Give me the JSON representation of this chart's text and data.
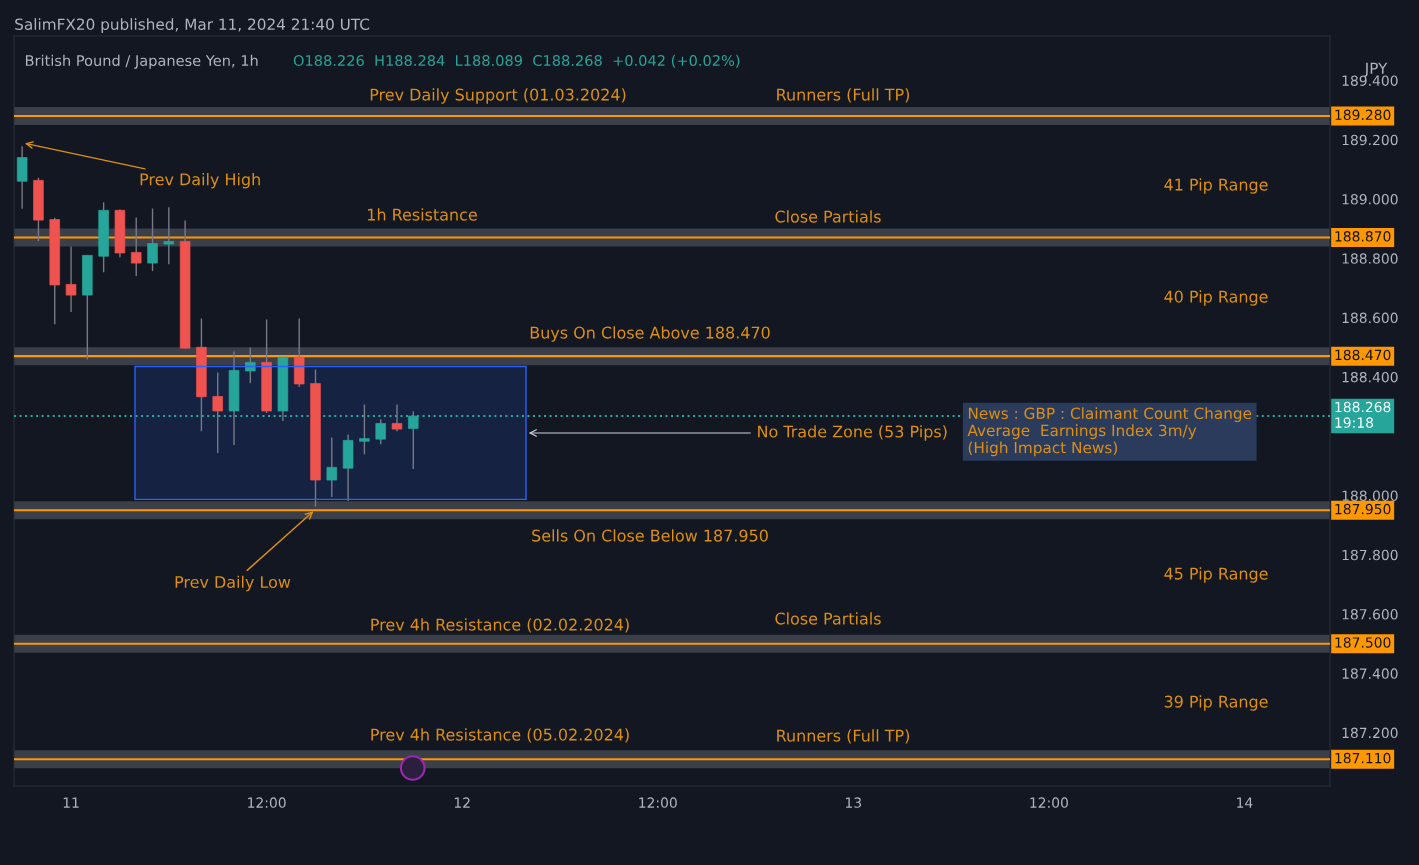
{
  "chart_data": {
    "type": "candlestick",
    "title": "British Pound / Japanese Yen, 1h",
    "subtitle": "O188.226  H188.284  L188.089  C188.268  +0.042 (+0.02%)",
    "ylabel": "JPY",
    "x": [
      "2024-03-10T21:00",
      "2024-03-10T22:00",
      "2024-03-10T23:00",
      "2024-03-11T00:00",
      "2024-03-11T01:00",
      "2024-03-11T02:00",
      "2024-03-11T03:00",
      "2024-03-11T04:00",
      "2024-03-11T05:00",
      "2024-03-11T06:00",
      "2024-03-11T07:00",
      "2024-03-11T08:00",
      "2024-03-11T09:00",
      "2024-03-11T10:00",
      "2024-03-11T11:00",
      "2024-03-11T12:00",
      "2024-03-11T13:00",
      "2024-03-11T14:00",
      "2024-03-11T15:00",
      "2024-03-11T16:00",
      "2024-03-11T17:00",
      "2024-03-11T18:00",
      "2024-03-11T19:00",
      "2024-03-11T20:00",
      "2024-03-11T21:00"
    ],
    "ohlc": [
      [
        189.06,
        189.178,
        188.967,
        189.14
      ],
      [
        189.063,
        189.072,
        188.858,
        188.929
      ],
      [
        188.931,
        188.937,
        188.578,
        188.71
      ],
      [
        188.712,
        188.84,
        188.619,
        188.676
      ],
      [
        188.676,
        188.81,
        188.459,
        188.81
      ],
      [
        188.807,
        188.989,
        188.753,
        188.962
      ],
      [
        188.962,
        188.965,
        188.804,
        188.818
      ],
      [
        188.82,
        188.938,
        188.74,
        188.784
      ],
      [
        188.784,
        188.968,
        188.757,
        188.85
      ],
      [
        188.848,
        188.972,
        188.78,
        188.857
      ],
      [
        188.857,
        188.928,
        188.495,
        188.497
      ],
      [
        188.5,
        188.597,
        188.217,
        188.333
      ],
      [
        188.334,
        188.415,
        188.143,
        188.285
      ],
      [
        188.285,
        188.486,
        188.17,
        188.422
      ],
      [
        188.42,
        188.499,
        188.379,
        188.449
      ],
      [
        188.449,
        188.594,
        188.278,
        188.285
      ],
      [
        188.285,
        188.467,
        188.251,
        188.467
      ],
      [
        188.467,
        188.597,
        188.366,
        188.376
      ],
      [
        188.378,
        188.425,
        187.962,
        188.052
      ],
      [
        188.052,
        188.196,
        187.995,
        188.095
      ],
      [
        188.092,
        188.206,
        187.981,
        188.186
      ],
      [
        188.183,
        188.307,
        188.139,
        188.192
      ],
      [
        188.19,
        188.257,
        188.173,
        188.243
      ],
      [
        188.243,
        188.307,
        188.217,
        188.224
      ],
      [
        188.226,
        188.284,
        188.089,
        188.268
      ]
    ],
    "colors": [
      "#26a69a",
      "#ef5350",
      "#ef5350",
      "#ef5350",
      "#26a69a",
      "#26a69a",
      "#ef5350",
      "#ef5350",
      "#26a69a",
      "#26a69a",
      "#ef5350",
      "#ef5350",
      "#ef5350",
      "#26a69a",
      "#26a69a",
      "#ef5350",
      "#26a69a",
      "#ef5350",
      "#ef5350",
      "#26a69a",
      "#26a69a",
      "#26a69a",
      "#26a69a",
      "#ef5350",
      "#26a69a"
    ],
    "xlim": [
      "2024-03-10T20:30",
      "2024-03-14T05:15"
    ],
    "xticks": [
      {
        "value": "2024-03-11T00:00",
        "label": "11"
      },
      {
        "value": "2024-03-11T12:00",
        "label": "12:00"
      },
      {
        "value": "2024-03-12T00:00",
        "label": "12"
      },
      {
        "value": "2024-03-12T12:00",
        "label": "12:00"
      },
      {
        "value": "2024-03-13T00:00",
        "label": "13"
      },
      {
        "value": "2024-03-13T12:00",
        "label": "12:00"
      },
      {
        "value": "2024-03-14T00:00",
        "label": "14"
      }
    ],
    "ylim": [
      187.02,
      189.55
    ],
    "yticks": [
      {
        "value": 187.2,
        "label": "187.200"
      },
      {
        "value": 187.4,
        "label": "187.400"
      },
      {
        "value": 187.6,
        "label": "187.600"
      },
      {
        "value": 187.8,
        "label": "187.800"
      },
      {
        "value": 188.0,
        "label": "188.000"
      },
      {
        "value": 188.4,
        "label": "188.400"
      },
      {
        "value": 188.6,
        "label": "188.600"
      },
      {
        "value": 188.8,
        "label": "188.800"
      },
      {
        "value": 189.0,
        "label": "189.000"
      },
      {
        "value": 189.2,
        "label": "189.200"
      },
      {
        "value": 189.4,
        "label": "189.400"
      }
    ],
    "ref_lines": [
      {
        "axis": "y",
        "value": 189.28,
        "label": "189.280",
        "color": "#ff9800",
        "line_style": "solid"
      },
      {
        "axis": "y",
        "value": 188.87,
        "label": "188.870",
        "color": "#ff9800",
        "line_style": "solid"
      },
      {
        "axis": "y",
        "value": 188.47,
        "label": "188.470",
        "color": "#ff9800",
        "line_style": "solid"
      },
      {
        "axis": "y",
        "value": 187.95,
        "label": "187.950",
        "color": "#ff9800",
        "line_style": "solid"
      },
      {
        "axis": "y",
        "value": 187.5,
        "label": "187.500",
        "color": "#ff9800",
        "line_style": "solid"
      },
      {
        "axis": "y",
        "value": 187.11,
        "label": "187.110",
        "color": "#ff9800",
        "line_style": "solid"
      },
      {
        "axis": "y",
        "value": 188.268,
        "label": "188.268\n19:18",
        "color": "#26a69a",
        "line_style": "dotted"
      }
    ],
    "bands": [
      {
        "axis": "y",
        "from": 187.987,
        "to": 188.435,
        "label": "No Trade Zone (53 Pips)",
        "color": "#2962ff"
      }
    ],
    "annotations": [
      "SalimFX20 published, Mar 11, 2024 21:40 UTC",
      {
        "text": "Prev Daily High",
        "x": "2024-03-10T21:00",
        "y": 189.19
      },
      {
        "text": "Prev Daily Low",
        "x": "2024-03-11T15:00",
        "y": 187.953
      },
      "Prev Daily Support (01.03.2024)",
      "Runners (Full TP)",
      "41 Pip Range",
      "1h Resistance",
      "Close Partials",
      "40 Pip Range",
      "Buys On Close Above 188.470",
      "Sells On Close Below 187.950",
      "45 Pip Range",
      "Prev 4h Resistance (02.02.2024)",
      "Close Partials",
      "39 Pip Range",
      "Prev 4h Resistance (05.02.2024)",
      "Runners (Full TP)",
      "News : GBP : Claimant Count Change\nAverage  Earnings Index 3m/y\n(High Impact News)"
    ]
  }
}
